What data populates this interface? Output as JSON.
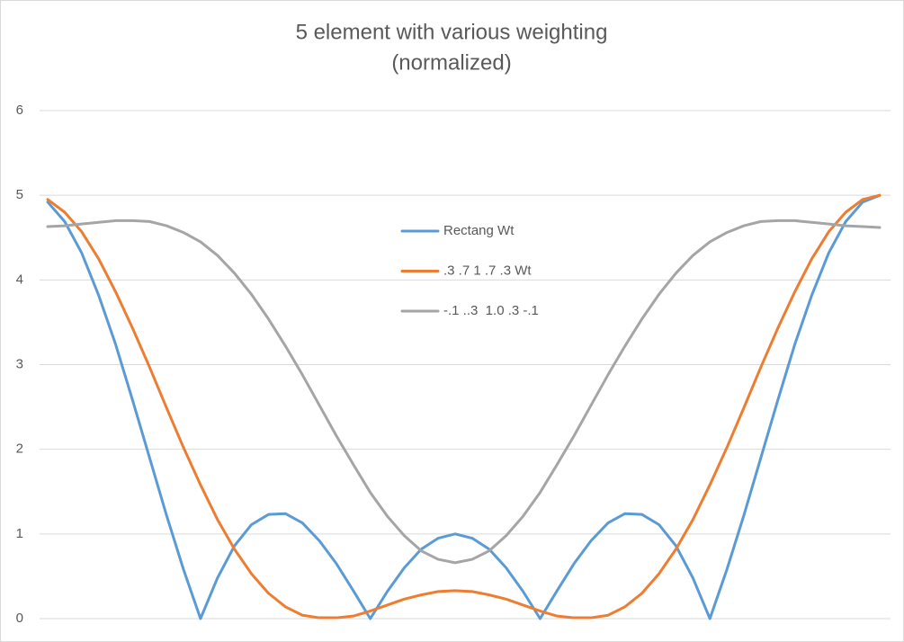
{
  "chart_data": {
    "type": "line",
    "title": [
      "5 element with various weighting",
      "(normalized)"
    ],
    "categories": [
      null,
      null,
      null,
      null,
      null,
      null,
      null,
      null,
      null,
      null,
      null,
      null,
      null,
      null,
      null,
      null,
      null,
      null,
      null,
      null,
      null,
      null,
      null,
      null,
      null,
      null,
      null,
      null,
      null,
      null,
      null,
      null,
      null,
      null,
      null,
      null,
      null,
      null,
      null,
      null,
      null,
      null,
      null,
      null,
      null,
      null,
      null,
      null,
      null,
      null
    ],
    "series": [
      {
        "name": "Rectang Wt",
        "color": "#5b9bd5",
        "values": [
          4.92,
          4.69,
          4.32,
          3.82,
          3.24,
          2.58,
          1.9,
          1.22,
          0.58,
          0,
          0.48,
          0.86,
          1.11,
          1.23,
          1.24,
          1.13,
          0.92,
          0.65,
          0.33,
          0,
          0.32,
          0.6,
          0.82,
          0.95,
          1,
          0.95,
          0.82,
          0.6,
          0.32,
          0,
          0.33,
          0.65,
          0.92,
          1.13,
          1.24,
          1.23,
          1.11,
          0.86,
          0.48,
          0,
          0.58,
          1.22,
          1.9,
          2.58,
          3.24,
          3.82,
          4.32,
          4.69,
          4.92,
          5
        ]
      },
      {
        "name": ".3 .7 1 .7 .3 Wt",
        "color": "#ed7d31",
        "values": [
          4.95,
          4.8,
          4.57,
          4.25,
          3.86,
          3.43,
          2.97,
          2.49,
          2.02,
          1.58,
          1.17,
          0.82,
          0.53,
          0.3,
          0.14,
          0.04,
          0.01,
          0.01,
          0.03,
          0.09,
          0.16,
          0.23,
          0.28,
          0.32,
          0.33,
          0.32,
          0.28,
          0.23,
          0.16,
          0.09,
          0.03,
          0.01,
          0.01,
          0.04,
          0.14,
          0.3,
          0.53,
          0.82,
          1.17,
          1.58,
          2.02,
          2.49,
          2.97,
          3.43,
          3.86,
          4.25,
          4.57,
          4.8,
          4.95,
          5
        ]
      },
      {
        "name": "-.1 ..3  1.0 .3 -.1",
        "color": "#a5a5a5",
        "values": [
          4.63,
          4.64,
          4.66,
          4.68,
          4.7,
          4.7,
          4.69,
          4.64,
          4.56,
          4.45,
          4.29,
          4.08,
          3.83,
          3.54,
          3.22,
          2.88,
          2.52,
          2.16,
          1.82,
          1.49,
          1.21,
          0.98,
          0.8,
          0.7,
          0.66,
          0.7,
          0.8,
          0.98,
          1.21,
          1.49,
          1.82,
          2.16,
          2.52,
          2.88,
          3.22,
          3.54,
          3.83,
          4.08,
          4.29,
          4.45,
          4.56,
          4.64,
          4.69,
          4.7,
          4.7,
          4.68,
          4.66,
          4.64,
          4.63,
          4.62
        ]
      }
    ],
    "ylim": [
      0,
      6
    ],
    "yticks": [
      0,
      1,
      2,
      3,
      4,
      5,
      6
    ],
    "grid": true,
    "legend": "center"
  }
}
